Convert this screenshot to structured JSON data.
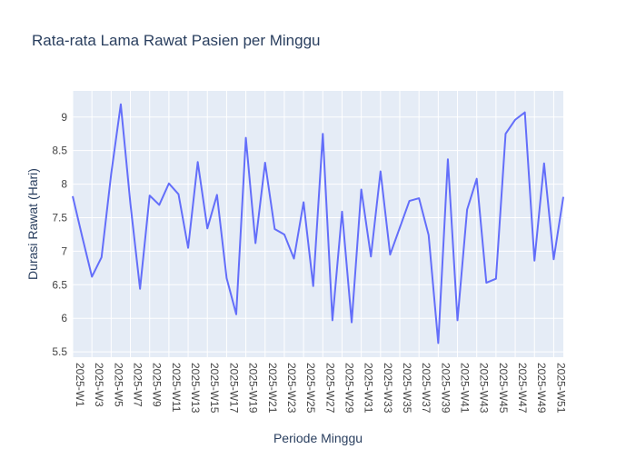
{
  "chart_data": {
    "type": "line",
    "title": "Rata-rata Lama Rawat Pasien per Minggu",
    "xlabel": "Periode Minggu",
    "ylabel": "Durasi Rawat (Hari)",
    "ylim": [
      5.42,
      9.39
    ],
    "yticks": [
      5.5,
      6,
      6.5,
      7,
      7.5,
      8,
      8.5,
      9
    ],
    "ytick_labels": [
      "5.5",
      "6",
      "6.5",
      "7",
      "7.5",
      "8",
      "8.5",
      "9"
    ],
    "xtick_labels": [
      "2025-W1",
      "2025-W3",
      "2025-W5",
      "2025-W7",
      "2025-W9",
      "2025-W11",
      "2025-W13",
      "2025-W15",
      "2025-W17",
      "2025-W19",
      "2025-W21",
      "2025-W23",
      "2025-W25",
      "2025-W27",
      "2025-W29",
      "2025-W31",
      "2025-W33",
      "2025-W35",
      "2025-W37",
      "2025-W39",
      "2025-W41",
      "2025-W43",
      "2025-W45",
      "2025-W47",
      "2025-W49",
      "2025-W51"
    ],
    "grid": true,
    "legend": "none",
    "series": [
      {
        "color": "#636efa",
        "x": [
          "2025-W1",
          "2025-W2",
          "2025-W3",
          "2025-W4",
          "2025-W5",
          "2025-W6",
          "2025-W7",
          "2025-W8",
          "2025-W9",
          "2025-W10",
          "2025-W11",
          "2025-W12",
          "2025-W13",
          "2025-W14",
          "2025-W15",
          "2025-W16",
          "2025-W17",
          "2025-W18",
          "2025-W19",
          "2025-W20",
          "2025-W21",
          "2025-W22",
          "2025-W23",
          "2025-W24",
          "2025-W25",
          "2025-W26",
          "2025-W27",
          "2025-W28",
          "2025-W29",
          "2025-W30",
          "2025-W31",
          "2025-W32",
          "2025-W33",
          "2025-W34",
          "2025-W36",
          "2025-W37",
          "2025-W38",
          "2025-W39",
          "2025-W40",
          "2025-W41",
          "2025-W42",
          "2025-W43",
          "2025-W44",
          "2025-W45",
          "2025-W46",
          "2025-W47",
          "2025-W48",
          "2025-W49",
          "2025-W50",
          "2025-W51",
          "2025-W52"
        ],
        "values": [
          7.82,
          7.21,
          6.62,
          6.91,
          8.15,
          9.19,
          7.71,
          6.44,
          7.83,
          7.69,
          8.01,
          7.85,
          7.05,
          8.33,
          7.34,
          7.84,
          6.6,
          6.06,
          8.69,
          7.12,
          8.32,
          7.33,
          7.25,
          6.89,
          7.73,
          6.48,
          8.75,
          5.97,
          7.59,
          5.94,
          7.92,
          6.92,
          8.19,
          6.95,
          7.75,
          7.79,
          7.24,
          5.63,
          8.37,
          5.97,
          7.62,
          8.08,
          6.53,
          6.59,
          8.75,
          8.96,
          9.07,
          6.86,
          8.31,
          6.88,
          7.81
        ]
      }
    ],
    "colors": {
      "plot_bg": "#e5ecf6",
      "grid": "#ffffff",
      "text": "#2a3f5f",
      "axis_text": "#444444"
    }
  }
}
